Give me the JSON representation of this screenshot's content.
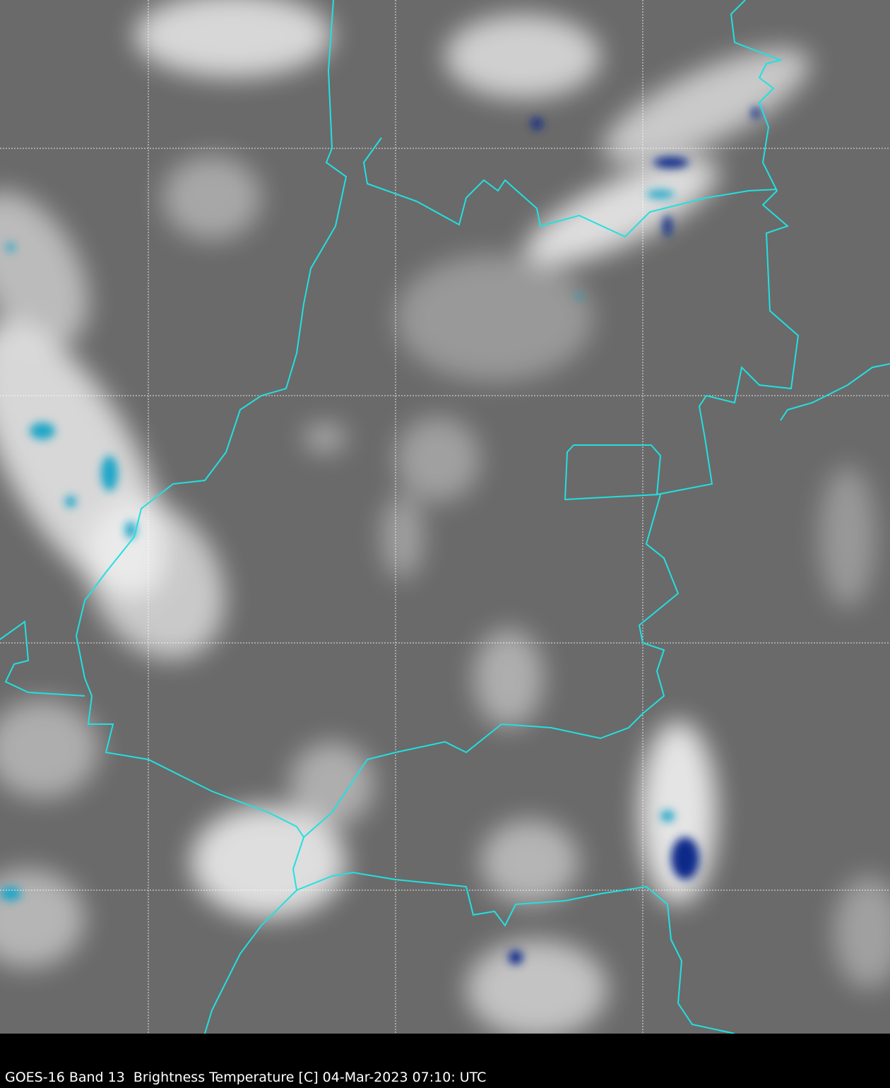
{
  "caption": "GOES-16 Band 13  Brightness Temperature [C] 04-Mar-2023 07:10: UTC",
  "colors": {
    "background": "#6a6a6a",
    "cloud": "#f2f2f2",
    "cold_top": "#1aa6c8",
    "coldest_top": "#0a2a8a",
    "borders": "#22e0e0",
    "gridlines": "#ffffff",
    "caption_bar": "#000000"
  },
  "map": {
    "gridlines": "dashed",
    "features": [
      "cloud-field",
      "state-borders",
      "cold-cloud-tops"
    ]
  }
}
